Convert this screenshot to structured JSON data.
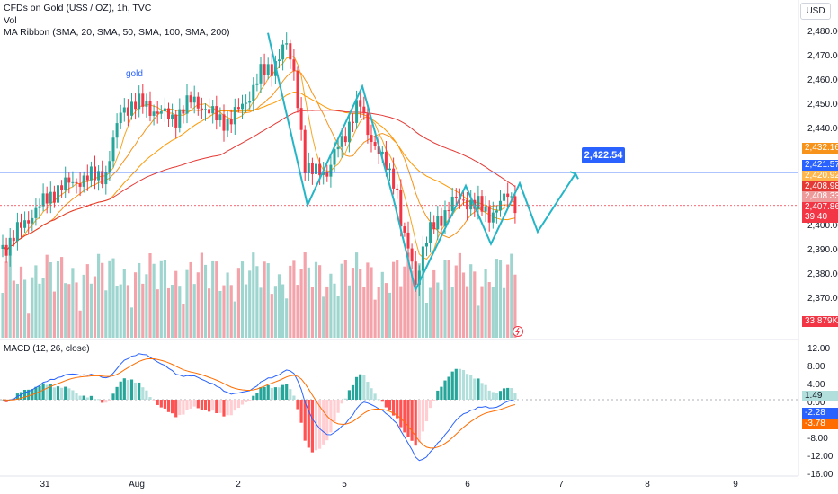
{
  "header": {
    "line1": "CFDs on Gold (US$ / OZ), 1h, TVC",
    "line2": "Vol",
    "line3": "MA Ribbon (SMA, 20, SMA, 50, SMA, 100, SMA, 200)"
  },
  "currency_button": "USD",
  "annotation_text": "gold",
  "target_callout": "2,422.54",
  "price_axis": [
    "2,480.00",
    "2,470.00",
    "2,460.00",
    "2,450.00",
    "2,440.00",
    "2,400.00",
    "2,390.00",
    "2,380.00",
    "2,370.00"
  ],
  "price_labels": [
    {
      "text": "2,432.16",
      "color": "#f7931a"
    },
    {
      "text": "2,421.57",
      "color": "#2962ff"
    },
    {
      "text": "2,420.92",
      "color": "#ffb74d"
    },
    {
      "text": "2,408.98",
      "color": "#e53935"
    },
    {
      "text": "2,408.33",
      "color": "#ef9a9a"
    },
    {
      "text": "2,407.86",
      "color": "#f23645"
    },
    {
      "text": "39:40",
      "color": "#f23645"
    },
    {
      "text": "33.879K",
      "color": "#f23645"
    }
  ],
  "macd": {
    "title": "MACD (12, 26, close)",
    "axis": [
      "12.00",
      "8.00",
      "4.00",
      "0.00",
      "-8.00",
      "-12.00",
      "-16.00"
    ],
    "labels": [
      {
        "text": "1.49",
        "color": "#b2dfdb",
        "text_color": "#131722"
      },
      {
        "text": "-2.28",
        "color": "#2962ff",
        "text_color": "#ffffff"
      },
      {
        "text": "-3.78",
        "color": "#ff6d00",
        "text_color": "#ffffff"
      }
    ]
  },
  "time_axis": [
    "31",
    "Aug",
    "2",
    "5",
    "6",
    "7",
    "8",
    "9"
  ],
  "colors": {
    "up": "#26a69a",
    "down": "#f23645",
    "ma20": "#f5a623",
    "ma50": "#f7931a",
    "ma100": "#ff9800",
    "ma200": "#e53935",
    "hline": "#2962ff",
    "pattern": "#26b5c6"
  }
}
